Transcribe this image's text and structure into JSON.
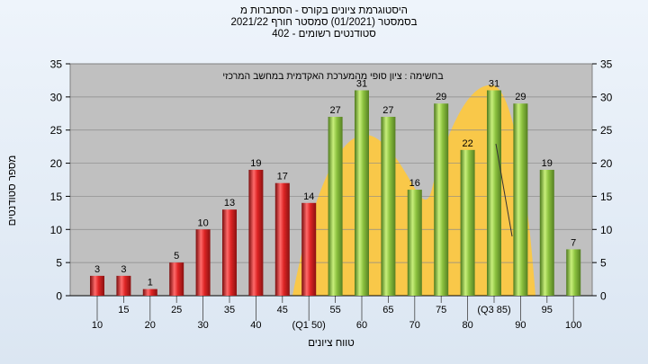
{
  "header": {
    "title_line1": "היסטוגרמת ציונים בקורס - הסתברות מ",
    "title_line2": "בסמסטר  (01/2021)  סמסטר חורף  2021/22",
    "title_line3": "סטודנטים רשומים - 402"
  },
  "colors": {
    "plot_bg": "#c0c0c0",
    "fail_bar": "#dd2424",
    "pass_bar": "#8cc23f",
    "curve_fill": "#ffc93c"
  },
  "chart_data": {
    "type": "bar",
    "title": "היסטוגרמת ציונים בקורס - הסתברות מ",
    "annotation": "בחשימה : ציון סופי מהמערכת האקדמית במחשב המרכזי",
    "xlabel": "טווח ציונים",
    "ylabel": "מספר סטודנטים",
    "ylim": [
      0,
      35
    ],
    "yticks": [
      0,
      5,
      10,
      15,
      20,
      25,
      30,
      35
    ],
    "right_axis": true,
    "grid": true,
    "categories": [
      "10",
      "15",
      "20",
      "25",
      "30",
      "35",
      "40",
      "45",
      "(Q1 50)",
      "55",
      "60",
      "65",
      "70",
      "75",
      "80",
      "(Q3 85)",
      "90",
      "95",
      "100"
    ],
    "values": [
      3,
      3,
      1,
      5,
      10,
      13,
      19,
      17,
      14,
      27,
      31,
      27,
      16,
      29,
      22,
      31,
      29,
      19,
      7
    ],
    "pass_from_index": 9
  }
}
